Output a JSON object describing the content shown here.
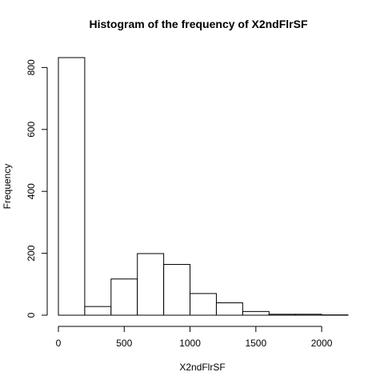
{
  "chart_data": {
    "type": "bar",
    "title": "Histogram of the frequency of X2ndFlrSF",
    "xlabel": "X2ndFlrSF",
    "ylabel": "Frequency",
    "bins": [
      {
        "start": 0,
        "end": 200,
        "count": 832
      },
      {
        "start": 200,
        "end": 400,
        "count": 28
      },
      {
        "start": 400,
        "end": 600,
        "count": 117
      },
      {
        "start": 600,
        "end": 800,
        "count": 199
      },
      {
        "start": 800,
        "end": 1000,
        "count": 164
      },
      {
        "start": 1000,
        "end": 1200,
        "count": 70
      },
      {
        "start": 1200,
        "end": 1400,
        "count": 40
      },
      {
        "start": 1400,
        "end": 1600,
        "count": 12
      },
      {
        "start": 1600,
        "end": 1800,
        "count": 3
      },
      {
        "start": 1800,
        "end": 2000,
        "count": 3
      },
      {
        "start": 2000,
        "end": 2200,
        "count": 1
      }
    ],
    "xlim": [
      0,
      2200
    ],
    "ylim": [
      0,
      832
    ],
    "x_ticks": [
      0,
      500,
      1000,
      1500,
      2000
    ],
    "x_tick_labels": [
      "0",
      "500",
      "1000",
      "1500",
      "2000"
    ],
    "y_ticks": [
      0,
      200,
      400,
      600,
      800
    ],
    "y_tick_labels": [
      "0",
      "200",
      "400",
      "600",
      "800"
    ],
    "bar_fill": "#ffffff",
    "bar_stroke": "#000000",
    "grid": false
  }
}
